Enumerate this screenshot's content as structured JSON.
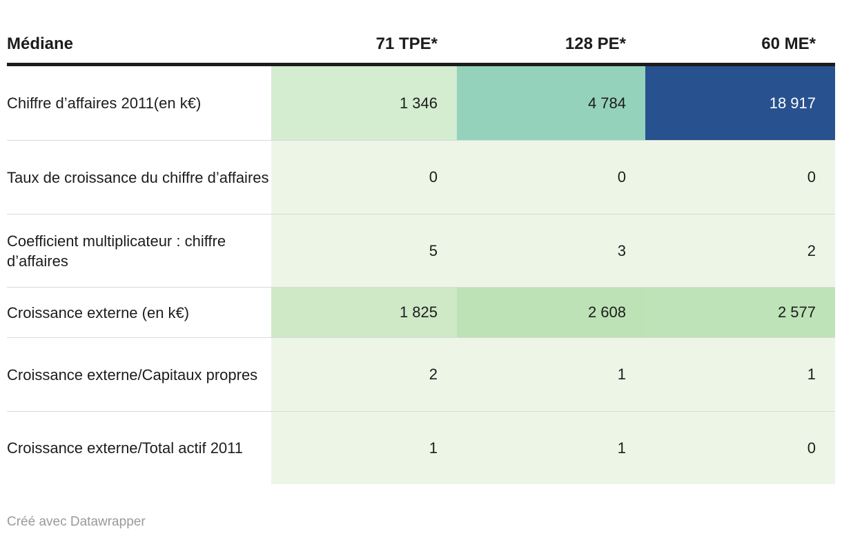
{
  "table": {
    "header": {
      "label": "Médiane",
      "columns": [
        "71 TPE*",
        "128 PE*",
        "60 ME*"
      ]
    },
    "rows": [
      {
        "label": "Chiffre d’affaires 2011(en k€)",
        "values": [
          "1 346",
          "4 784",
          "18 917"
        ],
        "colors": [
          "#d4ecd0",
          "#94d2bc",
          "#28518f"
        ],
        "text_colors": [
          "#1c1c1c",
          "#1c1c1c",
          "#ffffff"
        ]
      },
      {
        "label": "Taux de croissance du chiffre d’affaires",
        "values": [
          "0",
          "0",
          "0"
        ],
        "colors": [
          "#edf6e6",
          "#edf6e6",
          "#edf6e6"
        ],
        "text_colors": [
          "#1c1c1c",
          "#1c1c1c",
          "#1c1c1c"
        ]
      },
      {
        "label": "Coefficient multiplicateur : chiffre d’affaires",
        "values": [
          "5",
          "3",
          "2"
        ],
        "colors": [
          "#edf6e6",
          "#edf6e6",
          "#edf6e6"
        ],
        "text_colors": [
          "#1c1c1c",
          "#1c1c1c",
          "#1c1c1c"
        ]
      },
      {
        "label": "Croissance externe (en k€)",
        "values": [
          "1 825",
          "2 608",
          "2 577"
        ],
        "colors": [
          "#cfe9c7",
          "#bce2b5",
          "#bee3b8"
        ],
        "text_colors": [
          "#1c1c1c",
          "#1c1c1c",
          "#1c1c1c"
        ]
      },
      {
        "label": "Croissance externe/Capitaux propres",
        "values": [
          "2",
          "1",
          "1"
        ],
        "colors": [
          "#edf6e6",
          "#edf6e6",
          "#edf6e6"
        ],
        "text_colors": [
          "#1c1c1c",
          "#1c1c1c",
          "#1c1c1c"
        ]
      },
      {
        "label": "Croissance externe/Total actif 2011",
        "values": [
          "1",
          "1",
          "0"
        ],
        "colors": [
          "#edf6e6",
          "#edf6e6",
          "#edf6e6"
        ],
        "text_colors": [
          "#1c1c1c",
          "#1c1c1c",
          "#1c1c1c"
        ]
      }
    ],
    "footer": "Créé avec Datawrapper"
  },
  "chart_data": {
    "type": "table",
    "title": "Médiane",
    "columns": [
      "71 TPE*",
      "128 PE*",
      "60 ME*"
    ],
    "rows": [
      {
        "label": "Chiffre d’affaires 2011(en k€)",
        "values": [
          1346,
          4784,
          18917
        ]
      },
      {
        "label": "Taux de croissance du chiffre d’affaires",
        "values": [
          0,
          0,
          0
        ]
      },
      {
        "label": "Coefficient multiplicateur : chiffre d’affaires",
        "values": [
          5,
          3,
          2
        ]
      },
      {
        "label": "Croissance externe (en k€)",
        "values": [
          1825,
          2608,
          2577
        ]
      },
      {
        "label": "Croissance externe/Capitaux propres",
        "values": [
          2,
          1,
          1
        ]
      },
      {
        "label": "Croissance externe/Total actif 2011",
        "values": [
          1,
          1,
          0
        ]
      }
    ],
    "heatmap": true,
    "color_scale_low_to_high": [
      "#edf6e6",
      "#cfe9c7",
      "#bce2b5",
      "#94d2bc",
      "#28518f"
    ],
    "legend": "none",
    "footer": "Créé avec Datawrapper"
  }
}
